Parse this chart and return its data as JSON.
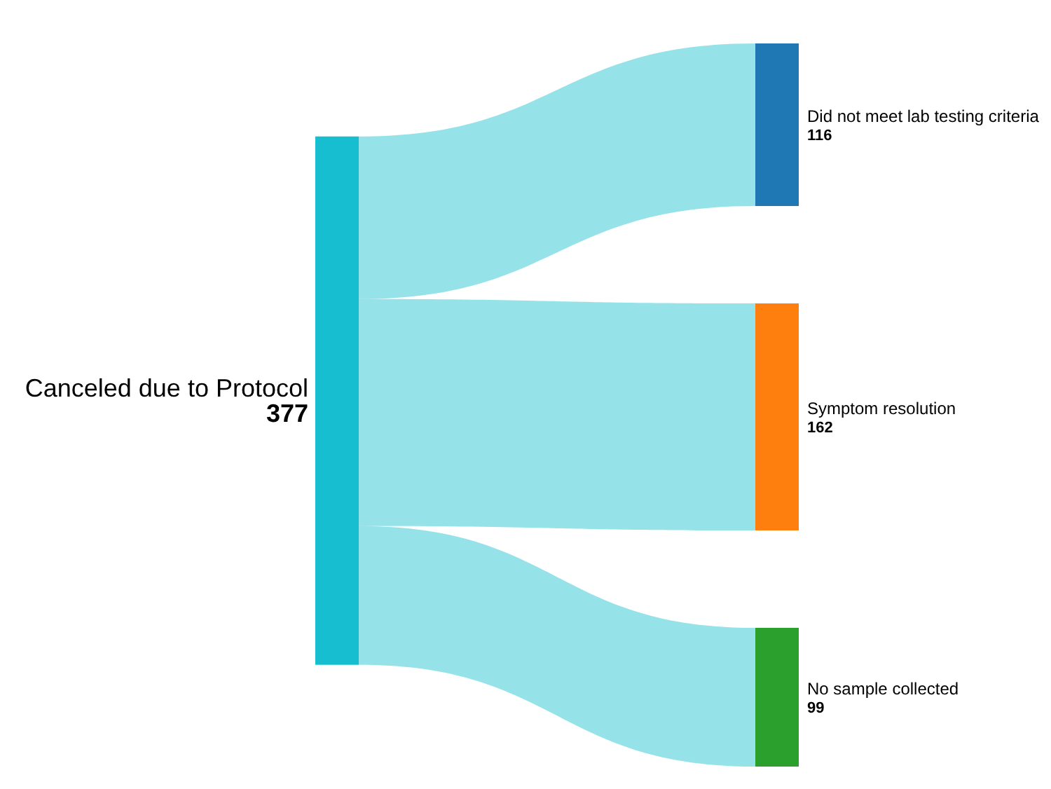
{
  "chart_data": {
    "type": "other",
    "categories": [
      "Canceled due to Protocol",
      "Did not meet lab testing criteria",
      "Symptom resolution",
      "No sample collected"
    ],
    "values": [
      377,
      116,
      162,
      99
    ],
    "colors": [
      "#17becf",
      "#1f77b4",
      "#ff7f0e",
      "#2ca02c"
    ],
    "data_labels": true
  }
}
